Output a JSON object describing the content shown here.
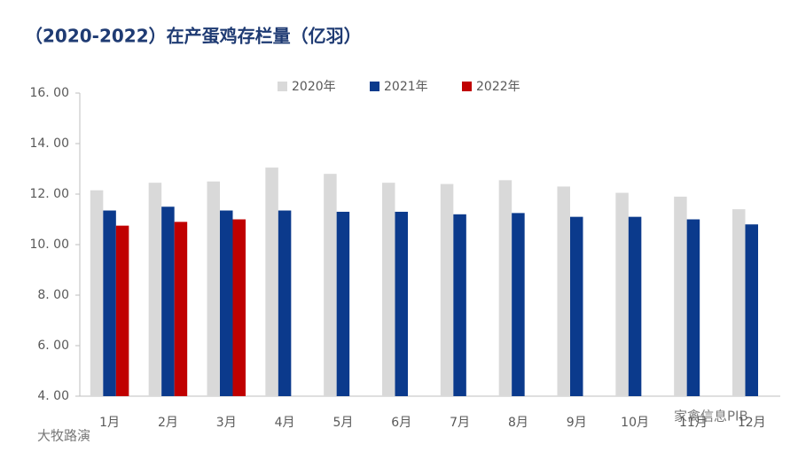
{
  "chart_data": {
    "type": "bar",
    "title": "（2020-2022）在产蛋鸡存栏量（亿羽）",
    "categories": [
      "1月",
      "2月",
      "3月",
      "4月",
      "5月",
      "6月",
      "7月",
      "8月",
      "9月",
      "10月",
      "11月",
      "12月"
    ],
    "series": [
      {
        "name": "2020年",
        "color": "#d9d9d9",
        "values": [
          12.15,
          12.45,
          12.5,
          13.05,
          12.8,
          12.45,
          12.4,
          12.55,
          12.3,
          12.05,
          11.9,
          11.4
        ]
      },
      {
        "name": "2021年",
        "color": "#0b3a8c",
        "values": [
          11.35,
          11.5,
          11.35,
          11.35,
          11.3,
          11.3,
          11.2,
          11.25,
          11.1,
          11.1,
          11.0,
          10.8
        ]
      },
      {
        "name": "2022年",
        "color": "#c00000",
        "values": [
          10.75,
          10.9,
          11.0,
          null,
          null,
          null,
          null,
          null,
          null,
          null,
          null,
          null
        ]
      }
    ],
    "ylim": [
      4,
      16
    ],
    "yticks": [
      {
        "value": 4,
        "label": "4. 00"
      },
      {
        "value": 6,
        "label": "6. 00"
      },
      {
        "value": 8,
        "label": "8. 00"
      },
      {
        "value": 10,
        "label": "10. 00"
      },
      {
        "value": 12,
        "label": "12. 00"
      },
      {
        "value": 14,
        "label": "14. 00"
      },
      {
        "value": 16,
        "label": "16. 00"
      }
    ],
    "legend": "top",
    "watermarks": [
      "家禽信息PIB",
      "大牧路演"
    ]
  }
}
